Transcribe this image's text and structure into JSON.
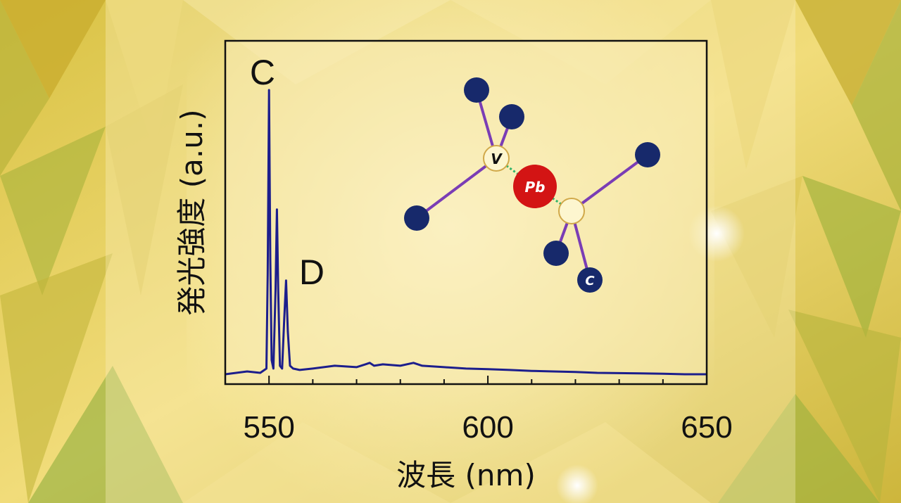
{
  "chart_data": {
    "type": "line",
    "xlabel": "波長 (nm)",
    "ylabel": "発光強度 (a.u.)",
    "xlim": [
      540,
      650
    ],
    "ylim": [
      0,
      1.05
    ],
    "x_ticks": [
      "550",
      "600",
      "650"
    ],
    "y_ticks": [],
    "grid": false,
    "legend": "none",
    "annotations": [
      {
        "text": "C",
        "x": 548.5,
        "y": 1.0
      },
      {
        "text": "D",
        "x": 557.5,
        "y": 0.3
      }
    ],
    "series": [
      {
        "color": "#1c1e8c",
        "x": [
          540,
          545,
          548,
          549.4,
          549.7,
          550.0,
          550.3,
          550.6,
          551.0,
          551.5,
          551.8,
          552.1,
          552.5,
          553.0,
          553.5,
          553.9,
          554.3,
          554.8,
          555.5,
          557,
          560,
          565,
          570,
          572,
          573,
          574,
          576,
          580,
          583,
          585,
          590,
          595,
          600,
          605,
          610,
          615,
          620,
          625,
          630,
          635,
          640,
          645,
          650
        ],
        "y": [
          0.0,
          0.01,
          0.005,
          0.02,
          0.35,
          1.0,
          0.4,
          0.05,
          0.02,
          0.3,
          0.58,
          0.3,
          0.03,
          0.02,
          0.2,
          0.33,
          0.15,
          0.03,
          0.02,
          0.015,
          0.02,
          0.03,
          0.025,
          0.035,
          0.04,
          0.03,
          0.035,
          0.03,
          0.04,
          0.03,
          0.025,
          0.02,
          0.018,
          0.015,
          0.012,
          0.01,
          0.008,
          0.005,
          0.004,
          0.003,
          0.002,
          0.0,
          0.0
        ]
      }
    ]
  },
  "molecule": {
    "center_atom": "Pb",
    "donor_label": "V",
    "carbon_label": "C"
  },
  "colors": {
    "line": "#1c1e8c",
    "atom_blue": "#17296b",
    "bond_purple": "#7a3db5",
    "pb_red": "#d31414",
    "panel": "#f8ebb4"
  }
}
